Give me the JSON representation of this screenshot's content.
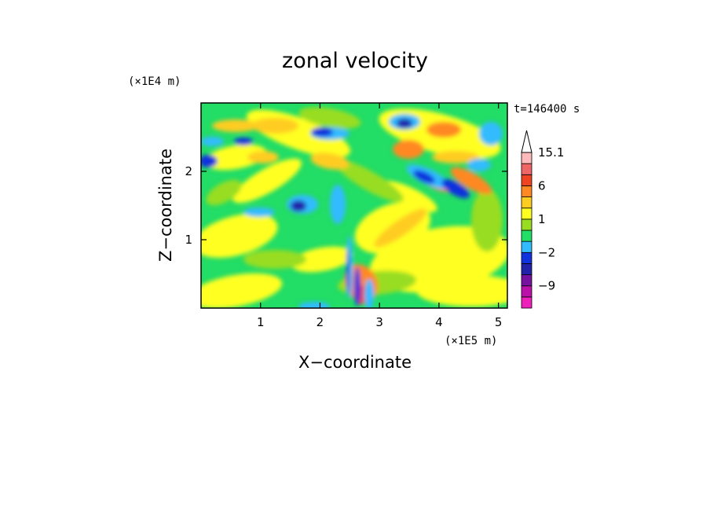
{
  "chart_data": {
    "type": "heatmap",
    "title": "zonal velocity",
    "xlabel": "X−coordinate",
    "ylabel": "Z−coordinate",
    "x_unit": "(×1E5 m)",
    "y_unit": "(×1E4 m)",
    "time_label": "t=146400 s",
    "xlim": [
      0,
      5.15
    ],
    "ylim": [
      0,
      3.0
    ],
    "x_ticks": [
      {
        "value": 1,
        "label": "1"
      },
      {
        "value": 2,
        "label": "2"
      },
      {
        "value": 3,
        "label": "3"
      },
      {
        "value": 4,
        "label": "4"
      },
      {
        "value": 5,
        "label": "5"
      }
    ],
    "y_ticks": [
      {
        "value": 1,
        "label": "1"
      },
      {
        "value": 2,
        "label": "2"
      }
    ],
    "colorbar": {
      "levels": [
        -15,
        -12,
        -9,
        -6,
        -4,
        -2,
        -1,
        0,
        1,
        2,
        4,
        6,
        9,
        12,
        15.1
      ],
      "colors": [
        "#ee22bb",
        "#bb11aa",
        "#7711a0",
        "#2222aa",
        "#1133dd",
        "#33bbff",
        "#22dd66",
        "#99dd22",
        "#ffff22",
        "#ffcc22",
        "#ff8822",
        "#ee4422",
        "#ee6666",
        "#ffbbbb"
      ],
      "labels": [
        {
          "value": 15.1,
          "label": "15.1"
        },
        {
          "value": 6,
          "label": "6"
        },
        {
          "value": 1,
          "label": "1"
        },
        {
          "value": -2,
          "label": "−2"
        },
        {
          "value": -9,
          "label": "−9"
        }
      ],
      "extend": "max"
    },
    "grid": false
  }
}
